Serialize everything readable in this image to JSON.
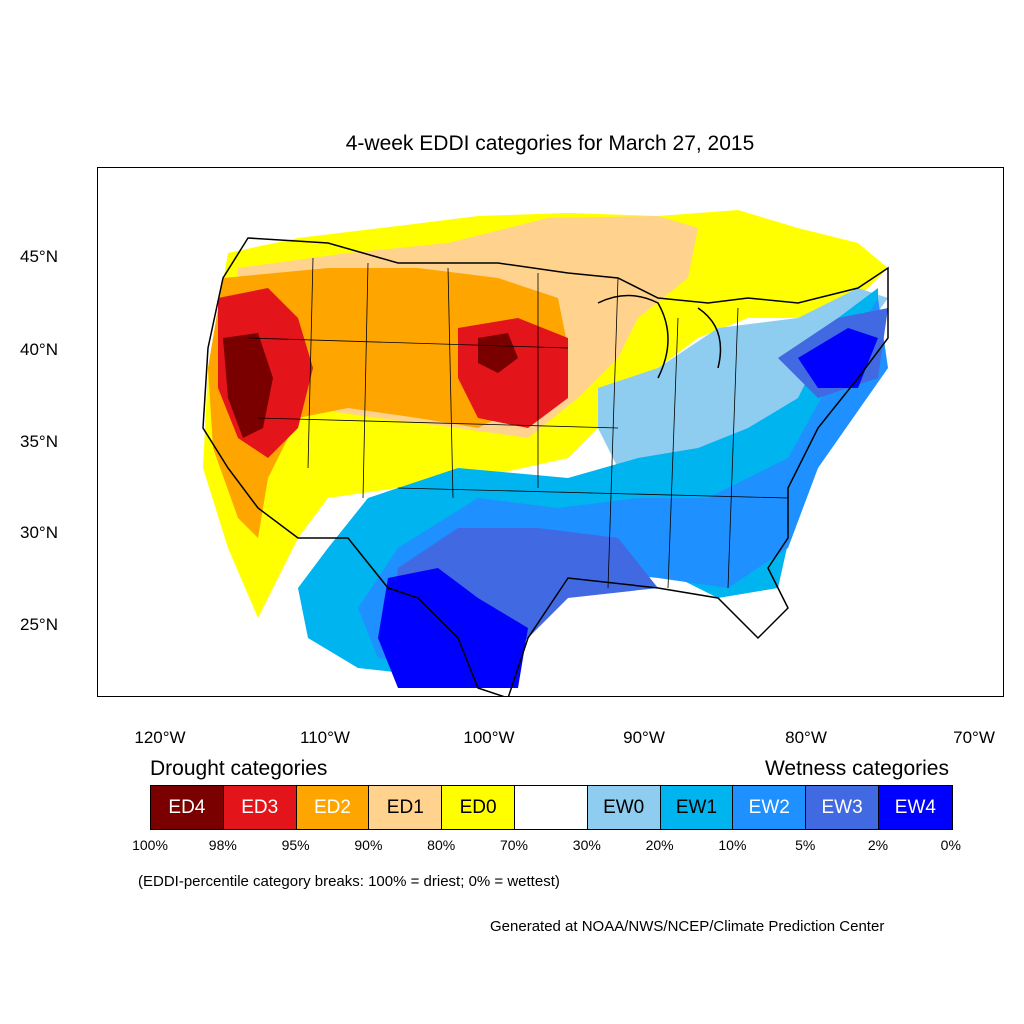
{
  "title": "4-week EDDI categories for March 27, 2015",
  "lat_labels": [
    "45°N",
    "40°N",
    "35°N",
    "30°N",
    "25°N"
  ],
  "lon_labels": [
    "120°W",
    "110°W",
    "100°W",
    "90°W",
    "80°W",
    "70°W"
  ],
  "legend": {
    "drought_heading": "Drought categories",
    "wetness_heading": "Wetness categories",
    "categories": [
      {
        "label": "ED4",
        "color": "#7a0000",
        "text_color": "#ffffff"
      },
      {
        "label": "ED3",
        "color": "#e4141b",
        "text_color": "#ffffff"
      },
      {
        "label": "ED2",
        "color": "#ffa500",
        "text_color": "#ffffff"
      },
      {
        "label": "ED1",
        "color": "#ffd38d",
        "text_color": "#000000"
      },
      {
        "label": "ED0",
        "color": "#ffff00",
        "text_color": "#000000"
      },
      {
        "label": "",
        "color": "#ffffff",
        "text_color": "#000000"
      },
      {
        "label": "EW0",
        "color": "#8fcdf0",
        "text_color": "#000000"
      },
      {
        "label": "EW1",
        "color": "#00b4f0",
        "text_color": "#000000"
      },
      {
        "label": "EW2",
        "color": "#1e90ff",
        "text_color": "#ffffff"
      },
      {
        "label": "EW3",
        "color": "#4169e1",
        "text_color": "#ffffff"
      },
      {
        "label": "EW4",
        "color": "#0000ff",
        "text_color": "#ffffff"
      }
    ],
    "breaks": [
      "100%",
      "98%",
      "95%",
      "90%",
      "80%",
      "70%",
      "30%",
      "20%",
      "10%",
      "5%",
      "2%",
      "0%"
    ]
  },
  "note": "(EDDI-percentile category breaks: 100% = driest; 0% = wettest)",
  "credit": "Generated at NOAA/NWS/NCEP/Climate Prediction Center"
}
